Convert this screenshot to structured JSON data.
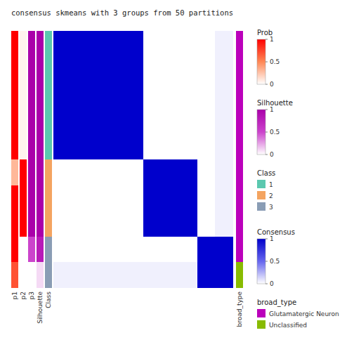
{
  "chart_data": {
    "type": "heatmap",
    "title": "consensus skmeans with 3 groups from 50 partitions",
    "values": [
      [
        1.0,
        1.0,
        1.0,
        1.0,
        1.0,
        0.0,
        0.0,
        0.0,
        0.0,
        0.05
      ],
      [
        1.0,
        1.0,
        1.0,
        1.0,
        1.0,
        0.0,
        0.0,
        0.0,
        0.0,
        0.05
      ],
      [
        1.0,
        1.0,
        1.0,
        1.0,
        1.0,
        0.0,
        0.0,
        0.0,
        0.0,
        0.05
      ],
      [
        1.0,
        1.0,
        1.0,
        1.0,
        1.0,
        0.0,
        0.0,
        0.0,
        0.0,
        0.05
      ],
      [
        1.0,
        1.0,
        1.0,
        1.0,
        1.0,
        0.0,
        0.0,
        0.0,
        0.0,
        0.05
      ],
      [
        0.0,
        0.0,
        0.0,
        0.0,
        0.0,
        1.0,
        1.0,
        1.0,
        0.0,
        0.05
      ],
      [
        0.0,
        0.0,
        0.0,
        0.0,
        0.0,
        1.0,
        1.0,
        1.0,
        0.0,
        0.05
      ],
      [
        0.0,
        0.0,
        0.0,
        0.0,
        0.0,
        1.0,
        1.0,
        1.0,
        0.0,
        0.05
      ],
      [
        0.0,
        0.0,
        0.0,
        0.0,
        0.0,
        0.0,
        0.0,
        0.0,
        1.0,
        1.0
      ],
      [
        0.05,
        0.05,
        0.05,
        0.05,
        0.05,
        0.05,
        0.05,
        0.05,
        1.0,
        1.0
      ]
    ],
    "heatmap_scale": "Consensus",
    "annotations": [
      {
        "name": "p1",
        "scale": "Prob",
        "values": [
          1.0,
          1.0,
          1.0,
          1.0,
          1.0,
          0.3,
          1.0,
          1.0,
          1.0,
          0.7
        ]
      },
      {
        "name": "p2",
        "scale": "Prob",
        "values": [
          0.05,
          0.05,
          0.05,
          0.05,
          0.05,
          1.0,
          1.0,
          1.0,
          0.0,
          0.0
        ]
      },
      {
        "name": "p3",
        "scale": "Silhouette",
        "values": [
          1.0,
          1.0,
          1.0,
          1.0,
          1.0,
          1.0,
          1.0,
          1.0,
          0.5,
          0.0
        ]
      },
      {
        "name": "Silhouette",
        "scale": "Silhouette",
        "values": [
          1.0,
          1.0,
          1.0,
          1.0,
          1.0,
          1.0,
          1.0,
          1.0,
          0.8,
          0.1
        ]
      },
      {
        "name": "Class",
        "scale": "Class",
        "values": [
          1,
          1,
          1,
          1,
          1,
          2,
          2,
          2,
          3,
          3
        ]
      }
    ],
    "right_annotations": [
      {
        "name": "broad_type",
        "scale": "broad_type",
        "values": [
          1,
          1,
          1,
          1,
          1,
          1,
          1,
          1,
          1,
          2
        ]
      }
    ],
    "scales": [
      {
        "name": "Prob",
        "range": [
          0,
          1
        ],
        "ticks": [
          0,
          0.5,
          1
        ],
        "colors": [
          "#ffffff",
          "#FF8855",
          "#FF0000"
        ]
      },
      {
        "name": "Silhouette",
        "range": [
          0,
          1
        ],
        "ticks": [
          0,
          0.5,
          1
        ],
        "colors": [
          "#ffffff",
          "#CC44CC",
          "#AA00AA"
        ]
      },
      {
        "name": "Class",
        "codes": [
          1,
          2,
          3
        ],
        "categories": [
          "1",
          "2",
          "3"
        ],
        "colors": [
          "#5BC8AF",
          "#F4A460",
          "#8A9DB5"
        ]
      },
      {
        "name": "Consensus",
        "range": [
          0,
          1
        ],
        "ticks": [
          0,
          0.5,
          1
        ],
        "colors": [
          "#ffffff",
          "#6666EE",
          "#0000CC"
        ]
      },
      {
        "name": "broad_type",
        "codes": [
          1,
          2
        ],
        "categories": [
          "Glutamatergic Neuron",
          "Unclassified"
        ],
        "colors": [
          "#BB00BB",
          "#88BB00"
        ]
      }
    ]
  }
}
